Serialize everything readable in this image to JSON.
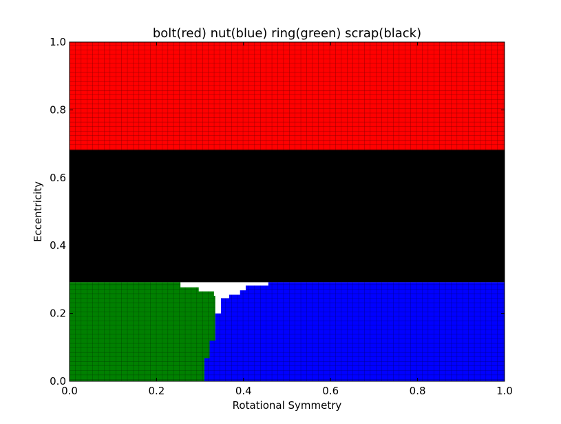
{
  "chart_data": {
    "type": "heatmap",
    "title": "bolt(red) nut(blue) ring(green) scrap(black)",
    "xlabel": "Rotational Symmetry",
    "ylabel": "Eccentricity",
    "xlim": [
      0.0,
      1.0
    ],
    "ylim": [
      0.0,
      1.0
    ],
    "xticks": [
      "0.0",
      "0.2",
      "0.4",
      "0.6",
      "0.8",
      "1.0"
    ],
    "yticks": [
      "0.0",
      "0.2",
      "0.4",
      "0.6",
      "0.8",
      "1.0"
    ],
    "grid_resolution": 0.0133,
    "regions": [
      {
        "class": "bolt",
        "color": "#ff0000",
        "polygon": [
          [
            0.0,
            0.682
          ],
          [
            1.0,
            0.682
          ],
          [
            1.0,
            1.0
          ],
          [
            0.0,
            1.0
          ]
        ]
      },
      {
        "class": "scrap",
        "color": "#000000",
        "polygon": [
          [
            0.0,
            0.292
          ],
          [
            1.0,
            0.292
          ],
          [
            1.0,
            0.682
          ],
          [
            0.0,
            0.682
          ]
        ]
      },
      {
        "class": "ring",
        "color": "#008000",
        "polygon": [
          [
            0.0,
            0.0
          ],
          [
            0.31,
            0.0
          ],
          [
            0.31,
            0.068
          ],
          [
            0.322,
            0.068
          ],
          [
            0.322,
            0.12
          ],
          [
            0.335,
            0.12
          ],
          [
            0.335,
            0.24
          ],
          [
            0.335,
            0.252
          ],
          [
            0.332,
            0.252
          ],
          [
            0.332,
            0.265
          ],
          [
            0.297,
            0.265
          ],
          [
            0.297,
            0.277
          ],
          [
            0.255,
            0.277
          ],
          [
            0.255,
            0.292
          ],
          [
            0.0,
            0.292
          ]
        ]
      },
      {
        "class": "nut",
        "color": "#0000ff",
        "polygon": [
          [
            0.31,
            0.0
          ],
          [
            1.0,
            0.0
          ],
          [
            1.0,
            0.292
          ],
          [
            0.457,
            0.292
          ],
          [
            0.457,
            0.282
          ],
          [
            0.405,
            0.282
          ],
          [
            0.405,
            0.268
          ],
          [
            0.392,
            0.268
          ],
          [
            0.392,
            0.255
          ],
          [
            0.367,
            0.255
          ],
          [
            0.367,
            0.245
          ],
          [
            0.348,
            0.245
          ],
          [
            0.348,
            0.2
          ],
          [
            0.335,
            0.2
          ],
          [
            0.335,
            0.12
          ],
          [
            0.322,
            0.12
          ],
          [
            0.322,
            0.068
          ],
          [
            0.31,
            0.068
          ]
        ]
      }
    ],
    "grid": "cell outlines on colored regions",
    "legend": "none"
  }
}
